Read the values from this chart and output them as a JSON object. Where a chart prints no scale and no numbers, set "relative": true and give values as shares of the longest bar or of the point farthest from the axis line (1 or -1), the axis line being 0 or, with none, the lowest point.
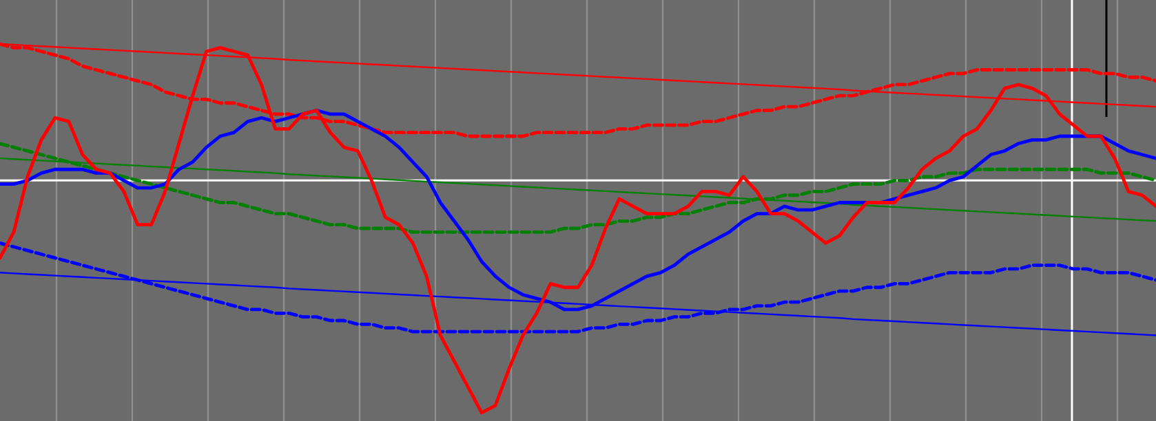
{
  "chart_data": {
    "type": "line",
    "relative": true,
    "grid": "x",
    "categories": [
      null,
      null,
      null,
      null,
      null,
      null,
      null,
      null,
      null,
      null,
      null,
      null,
      null,
      null,
      null,
      null,
      null,
      null,
      null,
      null,
      null,
      null,
      null,
      null,
      null,
      null,
      null,
      null,
      null,
      null,
      null,
      null,
      null,
      null,
      null,
      null,
      null,
      null,
      null,
      null,
      null,
      null,
      null,
      null,
      null,
      null,
      null,
      null,
      null,
      null,
      null,
      null,
      null,
      null,
      null,
      null,
      null,
      null,
      null,
      null,
      null,
      null,
      null,
      null,
      null,
      null,
      null,
      null,
      null,
      null,
      null,
      null,
      null,
      null,
      null,
      null,
      null,
      null,
      null,
      null,
      null,
      null,
      null,
      null,
      null
    ],
    "ref_lines": [
      {
        "axis": "y",
        "value": 0.63,
        "color": "#ffffff"
      }
    ],
    "series": [
      {
        "color": "#ff0000",
        "line_style": "solid",
        "values": [
          1.0,
          0.998,
          0.996,
          0.994,
          0.992,
          0.99,
          0.988,
          0.986,
          0.984,
          0.982,
          0.98,
          0.978,
          0.976,
          0.974,
          0.972,
          0.97,
          0.968,
          0.966,
          0.964,
          0.962,
          0.96,
          0.957,
          0.955,
          0.953,
          0.951,
          0.949,
          0.947,
          0.945,
          0.943,
          0.941,
          0.939,
          0.937,
          0.935,
          0.933,
          0.931,
          0.929,
          0.927,
          0.925,
          0.923,
          0.921,
          0.919,
          0.917,
          0.915,
          0.913,
          0.911,
          0.909,
          0.907,
          0.905,
          0.903,
          0.901,
          0.899,
          0.897,
          0.895,
          0.893,
          0.891,
          0.889,
          0.887,
          0.885,
          0.883,
          0.881,
          0.879,
          0.877,
          0.874,
          0.872,
          0.87,
          0.868,
          0.866,
          0.864,
          0.862,
          0.86,
          0.858,
          0.856,
          0.854,
          0.852,
          0.85,
          0.848,
          0.846,
          0.844,
          0.842,
          0.84,
          0.838,
          0.836,
          0.834,
          0.832,
          0.83
        ]
      },
      {
        "color": "#008000",
        "line_style": "solid",
        "values": [
          0.69,
          0.688,
          0.686,
          0.684,
          0.682,
          0.68,
          0.678,
          0.676,
          0.674,
          0.672,
          0.67,
          0.668,
          0.666,
          0.664,
          0.662,
          0.66,
          0.658,
          0.656,
          0.654,
          0.652,
          0.65,
          0.647,
          0.645,
          0.643,
          0.641,
          0.639,
          0.637,
          0.635,
          0.633,
          0.631,
          0.629,
          0.627,
          0.625,
          0.623,
          0.621,
          0.619,
          0.617,
          0.615,
          0.613,
          0.611,
          0.609,
          0.607,
          0.605,
          0.603,
          0.601,
          0.599,
          0.597,
          0.595,
          0.593,
          0.591,
          0.589,
          0.587,
          0.585,
          0.583,
          0.581,
          0.579,
          0.577,
          0.575,
          0.573,
          0.571,
          0.569,
          0.567,
          0.564,
          0.562,
          0.56,
          0.558,
          0.556,
          0.554,
          0.552,
          0.55,
          0.548,
          0.546,
          0.544,
          0.542,
          0.54,
          0.538,
          0.536,
          0.534,
          0.532,
          0.53,
          0.528,
          0.526,
          0.524,
          0.522,
          0.52
        ]
      },
      {
        "color": "#0000ff",
        "line_style": "solid",
        "values": [
          0.38,
          0.378,
          0.376,
          0.374,
          0.372,
          0.37,
          0.368,
          0.366,
          0.364,
          0.362,
          0.36,
          0.358,
          0.356,
          0.354,
          0.352,
          0.35,
          0.348,
          0.346,
          0.344,
          0.342,
          0.34,
          0.337,
          0.335,
          0.333,
          0.331,
          0.329,
          0.327,
          0.325,
          0.323,
          0.321,
          0.319,
          0.317,
          0.315,
          0.313,
          0.311,
          0.309,
          0.307,
          0.305,
          0.303,
          0.301,
          0.299,
          0.297,
          0.295,
          0.293,
          0.291,
          0.289,
          0.287,
          0.285,
          0.283,
          0.281,
          0.279,
          0.277,
          0.275,
          0.273,
          0.271,
          0.269,
          0.267,
          0.265,
          0.263,
          0.261,
          0.259,
          0.257,
          0.254,
          0.252,
          0.25,
          0.248,
          0.246,
          0.244,
          0.242,
          0.24,
          0.238,
          0.236,
          0.234,
          0.232,
          0.23,
          0.228,
          0.226,
          0.224,
          0.222,
          0.22,
          0.218,
          0.216,
          0.214,
          0.212,
          0.21
        ]
      },
      {
        "color": "#ff0000",
        "line_style": "dashed",
        "values": [
          1.0,
          0.99,
          0.99,
          0.98,
          0.97,
          0.96,
          0.94,
          0.93,
          0.92,
          0.91,
          0.9,
          0.89,
          0.87,
          0.86,
          0.85,
          0.85,
          0.84,
          0.84,
          0.83,
          0.82,
          0.81,
          0.81,
          0.8,
          0.8,
          0.79,
          0.79,
          0.78,
          0.77,
          0.76,
          0.76,
          0.76,
          0.76,
          0.76,
          0.76,
          0.75,
          0.75,
          0.75,
          0.75,
          0.75,
          0.76,
          0.76,
          0.76,
          0.76,
          0.76,
          0.76,
          0.77,
          0.77,
          0.78,
          0.78,
          0.78,
          0.78,
          0.79,
          0.79,
          0.8,
          0.81,
          0.82,
          0.82,
          0.83,
          0.83,
          0.84,
          0.85,
          0.86,
          0.86,
          0.87,
          0.88,
          0.89,
          0.89,
          0.9,
          0.91,
          0.92,
          0.92,
          0.93,
          0.93,
          0.93,
          0.93,
          0.93,
          0.93,
          0.93,
          0.93,
          0.93,
          0.92,
          0.92,
          0.91,
          0.91,
          0.9
        ]
      },
      {
        "color": "#008000",
        "line_style": "dashed",
        "values": [
          0.73,
          0.72,
          0.71,
          0.7,
          0.69,
          0.68,
          0.67,
          0.66,
          0.65,
          0.64,
          0.63,
          0.62,
          0.61,
          0.6,
          0.59,
          0.58,
          0.57,
          0.57,
          0.56,
          0.55,
          0.54,
          0.54,
          0.53,
          0.52,
          0.51,
          0.51,
          0.5,
          0.5,
          0.5,
          0.5,
          0.49,
          0.49,
          0.49,
          0.49,
          0.49,
          0.49,
          0.49,
          0.49,
          0.49,
          0.49,
          0.49,
          0.5,
          0.5,
          0.51,
          0.51,
          0.52,
          0.52,
          0.53,
          0.53,
          0.54,
          0.54,
          0.55,
          0.56,
          0.57,
          0.57,
          0.58,
          0.58,
          0.59,
          0.59,
          0.6,
          0.6,
          0.61,
          0.62,
          0.62,
          0.62,
          0.63,
          0.63,
          0.64,
          0.64,
          0.65,
          0.65,
          0.66,
          0.66,
          0.66,
          0.66,
          0.66,
          0.66,
          0.66,
          0.66,
          0.66,
          0.65,
          0.65,
          0.65,
          0.64,
          0.63
        ]
      },
      {
        "color": "#0000ff",
        "line_style": "dashed",
        "values": [
          0.46,
          0.45,
          0.44,
          0.43,
          0.42,
          0.41,
          0.4,
          0.39,
          0.38,
          0.37,
          0.36,
          0.35,
          0.34,
          0.33,
          0.32,
          0.31,
          0.3,
          0.29,
          0.28,
          0.28,
          0.27,
          0.27,
          0.26,
          0.26,
          0.25,
          0.25,
          0.24,
          0.24,
          0.23,
          0.23,
          0.22,
          0.22,
          0.22,
          0.22,
          0.22,
          0.22,
          0.22,
          0.22,
          0.22,
          0.22,
          0.22,
          0.22,
          0.22,
          0.23,
          0.23,
          0.24,
          0.24,
          0.25,
          0.25,
          0.26,
          0.26,
          0.27,
          0.27,
          0.28,
          0.28,
          0.29,
          0.29,
          0.3,
          0.3,
          0.31,
          0.32,
          0.33,
          0.33,
          0.34,
          0.34,
          0.35,
          0.35,
          0.36,
          0.37,
          0.38,
          0.38,
          0.38,
          0.38,
          0.39,
          0.39,
          0.4,
          0.4,
          0.4,
          0.39,
          0.39,
          0.38,
          0.38,
          0.38,
          0.37,
          0.36
        ]
      },
      {
        "color": "#0000ff",
        "line_style": "solid",
        "values": [
          0.62,
          0.62,
          0.63,
          0.65,
          0.66,
          0.66,
          0.66,
          0.65,
          0.65,
          0.63,
          0.61,
          0.61,
          0.62,
          0.66,
          0.68,
          0.72,
          0.75,
          0.76,
          0.79,
          0.8,
          0.79,
          0.8,
          0.81,
          0.82,
          0.81,
          0.81,
          0.79,
          0.77,
          0.75,
          0.72,
          0.68,
          0.64,
          0.57,
          0.52,
          0.47,
          0.41,
          0.37,
          0.34,
          0.32,
          0.31,
          0.3,
          0.28,
          0.28,
          0.29,
          0.31,
          0.33,
          0.35,
          0.37,
          0.38,
          0.4,
          0.43,
          0.45,
          0.47,
          0.49,
          0.52,
          0.54,
          0.54,
          0.56,
          0.55,
          0.55,
          0.56,
          0.57,
          0.57,
          0.57,
          0.57,
          0.58,
          0.59,
          0.6,
          0.61,
          0.63,
          0.64,
          0.67,
          0.7,
          0.71,
          0.73,
          0.74,
          0.74,
          0.75,
          0.75,
          0.75,
          0.75,
          0.73,
          0.71,
          0.7,
          0.69
        ]
      },
      {
        "color": "#ff0000",
        "line_style": "solid",
        "values": [
          0.42,
          0.49,
          0.64,
          0.74,
          0.8,
          0.79,
          0.7,
          0.66,
          0.65,
          0.6,
          0.51,
          0.51,
          0.6,
          0.73,
          0.86,
          0.98,
          0.99,
          0.98,
          0.97,
          0.89,
          0.77,
          0.77,
          0.81,
          0.82,
          0.76,
          0.72,
          0.71,
          0.63,
          0.53,
          0.51,
          0.46,
          0.37,
          0.21,
          0.14,
          0.07,
          0.0,
          0.02,
          0.12,
          0.21,
          0.27,
          0.35,
          0.34,
          0.34,
          0.4,
          0.5,
          0.58,
          0.56,
          0.54,
          0.54,
          0.54,
          0.56,
          0.6,
          0.6,
          0.59,
          0.64,
          0.6,
          0.54,
          0.54,
          0.52,
          0.49,
          0.46,
          0.48,
          0.53,
          0.57,
          0.57,
          0.57,
          0.61,
          0.66,
          0.69,
          0.71,
          0.75,
          0.77,
          0.82,
          0.88,
          0.89,
          0.88,
          0.86,
          0.81,
          0.78,
          0.75,
          0.75,
          0.69,
          0.6,
          0.59,
          0.56
        ]
      }
    ]
  }
}
